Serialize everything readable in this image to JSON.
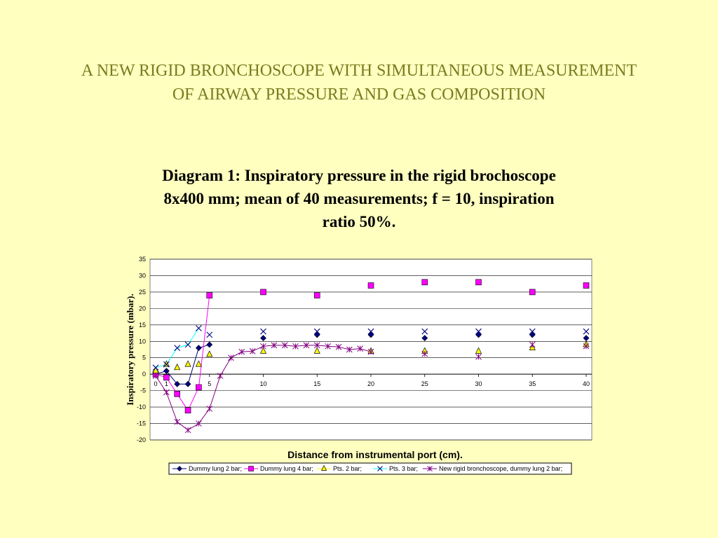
{
  "slide": {
    "title": "A NEW RIGID BRONCHOSCOPE WITH SIMULTANEOUS MEASUREMENT OF AIRWAY PRESSURE AND GAS COMPOSITION"
  },
  "colors": {
    "background": "#ffffc0",
    "title": "#7b7b1f"
  },
  "chart_data": {
    "type": "scatter",
    "title": "Diagram 1: Inspiratory pressure in the rigid brochoscope 8x400 mm; mean of 40 measurements; f = 10, inspiration ratio 50%.",
    "xlabel": "Distance from instrumental port (cm).",
    "ylabel": "Inspiratory pressure (mbar).",
    "xlim": [
      0,
      40
    ],
    "ylim": [
      -20,
      35
    ],
    "xticks": [
      0,
      1,
      5,
      10,
      15,
      20,
      25,
      30,
      35,
      40
    ],
    "yticks": [
      -20,
      -15,
      -10,
      -5,
      0,
      5,
      10,
      15,
      20,
      25,
      30,
      35
    ],
    "grid": "horizontal",
    "legend_position": "bottom",
    "series": [
      {
        "name": "Dummy lung 2 bar;",
        "marker": "diamond",
        "color": "#000080",
        "line_color": "#000080",
        "points": [
          [
            0,
            0
          ],
          [
            1,
            1
          ],
          [
            2,
            -3
          ],
          [
            3,
            -3
          ],
          [
            4,
            8
          ],
          [
            5,
            9
          ],
          [
            10,
            11
          ],
          [
            15,
            12
          ],
          [
            20,
            12
          ],
          [
            25,
            11
          ],
          [
            30,
            12
          ],
          [
            35,
            12
          ],
          [
            40,
            11
          ]
        ],
        "connect_until": 5
      },
      {
        "name": "Dummy lung 4 bar;",
        "marker": "square",
        "color": "#ff00ff",
        "line_color": "#ff00ff",
        "points": [
          [
            0,
            0
          ],
          [
            1,
            -1
          ],
          [
            2,
            -6
          ],
          [
            3,
            -11
          ],
          [
            4,
            -4
          ],
          [
            5,
            24
          ],
          [
            10,
            25
          ],
          [
            15,
            24
          ],
          [
            20,
            27
          ],
          [
            25,
            28
          ],
          [
            30,
            28
          ],
          [
            35,
            25
          ],
          [
            40,
            27
          ]
        ],
        "connect_until": 5
      },
      {
        "name": "Pts. 2 bar;",
        "marker": "triangle",
        "color": "#ffff00",
        "line_color": "#ffff00",
        "points": [
          [
            0,
            1
          ],
          [
            1,
            3
          ],
          [
            2,
            2
          ],
          [
            3,
            3
          ],
          [
            4,
            3
          ],
          [
            5,
            6
          ],
          [
            10,
            7
          ],
          [
            15,
            7
          ],
          [
            20,
            7
          ],
          [
            25,
            7
          ],
          [
            30,
            7
          ],
          [
            35,
            8
          ],
          [
            40,
            9
          ]
        ],
        "connect_until": 0
      },
      {
        "name": "Pts. 3 bar;",
        "marker": "x",
        "color": "#000080",
        "line_color": "#00ffff",
        "points": [
          [
            0,
            2
          ],
          [
            1,
            3
          ],
          [
            2,
            8
          ],
          [
            3,
            9
          ],
          [
            4,
            14
          ],
          [
            5,
            12
          ],
          [
            10,
            13
          ],
          [
            15,
            13
          ],
          [
            20,
            13
          ],
          [
            25,
            13
          ],
          [
            30,
            13
          ],
          [
            35,
            13
          ],
          [
            40,
            13
          ]
        ],
        "connect_until": 4
      },
      {
        "name": "New rigid bronchoscope, dummy lung 2 bar;",
        "marker": "star",
        "color": "#800080",
        "line_color": "#800080",
        "points": [
          [
            0,
            -0.5
          ],
          [
            1,
            -5.5
          ],
          [
            2,
            -14.5
          ],
          [
            3,
            -17
          ],
          [
            4,
            -15
          ],
          [
            5,
            -10.5
          ],
          [
            6,
            -0.5
          ],
          [
            7,
            5
          ],
          [
            8,
            6.8
          ],
          [
            9,
            7
          ],
          [
            10,
            8.5
          ],
          [
            11,
            8.8
          ],
          [
            12,
            8.8
          ],
          [
            13,
            8.5
          ],
          [
            14,
            8.8
          ],
          [
            15,
            8.8
          ],
          [
            16,
            8.5
          ],
          [
            17,
            8.3
          ],
          [
            18,
            7.5
          ],
          [
            19,
            7.8
          ],
          [
            20,
            6.8
          ],
          [
            25,
            6.2
          ],
          [
            30,
            5.3
          ],
          [
            35,
            9
          ],
          [
            40,
            8.5
          ]
        ],
        "connect_until": 20
      }
    ]
  }
}
